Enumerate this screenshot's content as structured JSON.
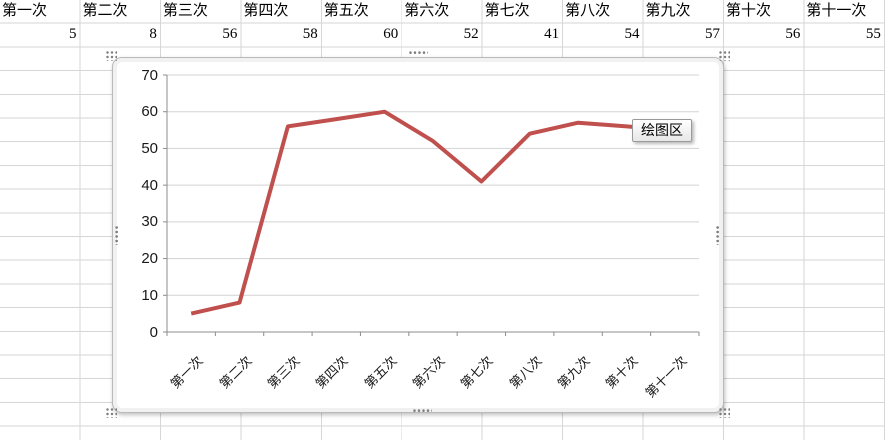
{
  "sheet": {
    "headers": [
      "第一次",
      "第二次",
      "第三次",
      "第四次",
      "第五次",
      "第六次",
      "第七次",
      "第八次",
      "第九次",
      "第十次",
      "第十一次"
    ],
    "values": [
      "5",
      "8",
      "56",
      "58",
      "60",
      "52",
      "41",
      "54",
      "57",
      "56",
      "55"
    ]
  },
  "chart": {
    "tooltip_label": "绘图区"
  },
  "chart_data": {
    "type": "line",
    "categories": [
      "第一次",
      "第二次",
      "第三次",
      "第四次",
      "第五次",
      "第六次",
      "第七次",
      "第八次",
      "第九次",
      "第十次",
      "第十一次"
    ],
    "values": [
      5,
      8,
      56,
      58,
      60,
      52,
      41,
      54,
      57,
      56,
      55
    ],
    "title": "",
    "xlabel": "",
    "ylabel": "",
    "ylim": [
      0,
      70
    ],
    "y_ticks": [
      0,
      10,
      20,
      30,
      40,
      50,
      60,
      70
    ],
    "grid": true,
    "legend": "none",
    "x_label_rotation": 45
  },
  "colors": {
    "series": "#C0504D",
    "sheet_gridline": "#D6D6D6",
    "chart_gridline": "#D3D3D3",
    "axis": "#8C8C8C"
  }
}
